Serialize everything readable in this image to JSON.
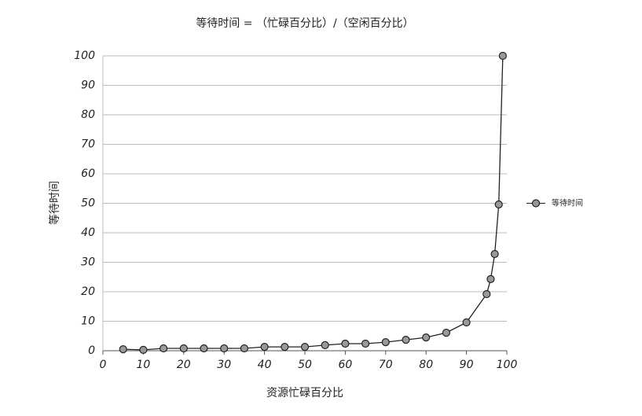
{
  "chart_data": {
    "type": "line",
    "title": "等待时间 = （忙碌百分比）/（空闲百分比）",
    "x_label": "资源忙碌百分比",
    "y_label": "等待时间",
    "x": [
      5,
      10,
      15,
      20,
      25,
      30,
      35,
      40,
      45,
      50,
      55,
      60,
      65,
      70,
      75,
      80,
      85,
      90,
      95,
      96,
      97,
      98,
      99
    ],
    "series": [
      {
        "name": "等待时间",
        "color": "#999999",
        "values": [
          0.5,
          0.3,
          0.8,
          0.8,
          0.8,
          0.8,
          0.8,
          1.3,
          1.3,
          1.3,
          1.9,
          2.4,
          2.4,
          2.9,
          3.7,
          4.5,
          6.1,
          9.6,
          19.2,
          24.3,
          32.8,
          49.6,
          100
        ]
      }
    ],
    "xlim": [
      0,
      100
    ],
    "xticks": [
      0,
      10,
      20,
      30,
      40,
      50,
      60,
      70,
      80,
      90,
      100
    ],
    "ylim": [
      0,
      100
    ],
    "yticks": [
      0,
      10,
      20,
      30,
      40,
      50,
      60,
      70,
      80,
      90,
      100
    ],
    "grid": true,
    "legend": "right"
  }
}
